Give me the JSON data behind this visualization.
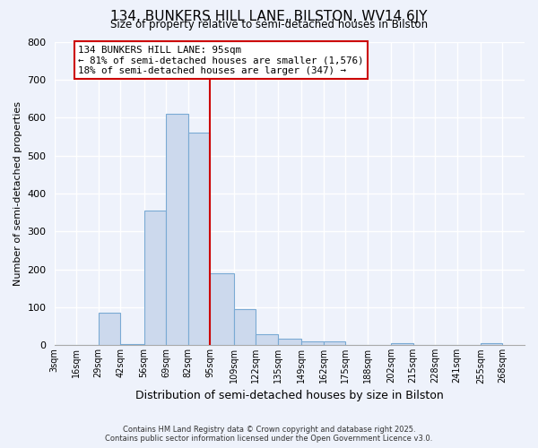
{
  "title": "134, BUNKERS HILL LANE, BILSTON, WV14 6JY",
  "subtitle": "Size of property relative to semi-detached houses in Bilston",
  "xlabel": "Distribution of semi-detached houses by size in Bilston",
  "ylabel": "Number of semi-detached properties",
  "bin_labels": [
    "3sqm",
    "16sqm",
    "29sqm",
    "42sqm",
    "56sqm",
    "69sqm",
    "82sqm",
    "95sqm",
    "109sqm",
    "122sqm",
    "135sqm",
    "149sqm",
    "162sqm",
    "175sqm",
    "188sqm",
    "202sqm",
    "215sqm",
    "228sqm",
    "241sqm",
    "255sqm",
    "268sqm"
  ],
  "bin_edges": [
    3,
    16,
    29,
    42,
    56,
    69,
    82,
    95,
    109,
    122,
    135,
    149,
    162,
    175,
    188,
    202,
    215,
    228,
    241,
    255,
    268
  ],
  "bar_heights": [
    0,
    0,
    85,
    3,
    355,
    610,
    560,
    190,
    95,
    30,
    17,
    10,
    10,
    0,
    0,
    5,
    0,
    0,
    0,
    5
  ],
  "bar_color": "#ccd9ed",
  "bar_edge_color": "#7aaad4",
  "marker_value": 95,
  "marker_color": "#cc0000",
  "annotation_title": "134 BUNKERS HILL LANE: 95sqm",
  "annotation_line1": "← 81% of semi-detached houses are smaller (1,576)",
  "annotation_line2": "18% of semi-detached houses are larger (347) →",
  "ylim": [
    0,
    800
  ],
  "yticks": [
    0,
    100,
    200,
    300,
    400,
    500,
    600,
    700,
    800
  ],
  "background_color": "#eef2fb",
  "grid_color": "#ffffff",
  "footer_line1": "Contains HM Land Registry data © Crown copyright and database right 2025.",
  "footer_line2": "Contains public sector information licensed under the Open Government Licence v3.0."
}
